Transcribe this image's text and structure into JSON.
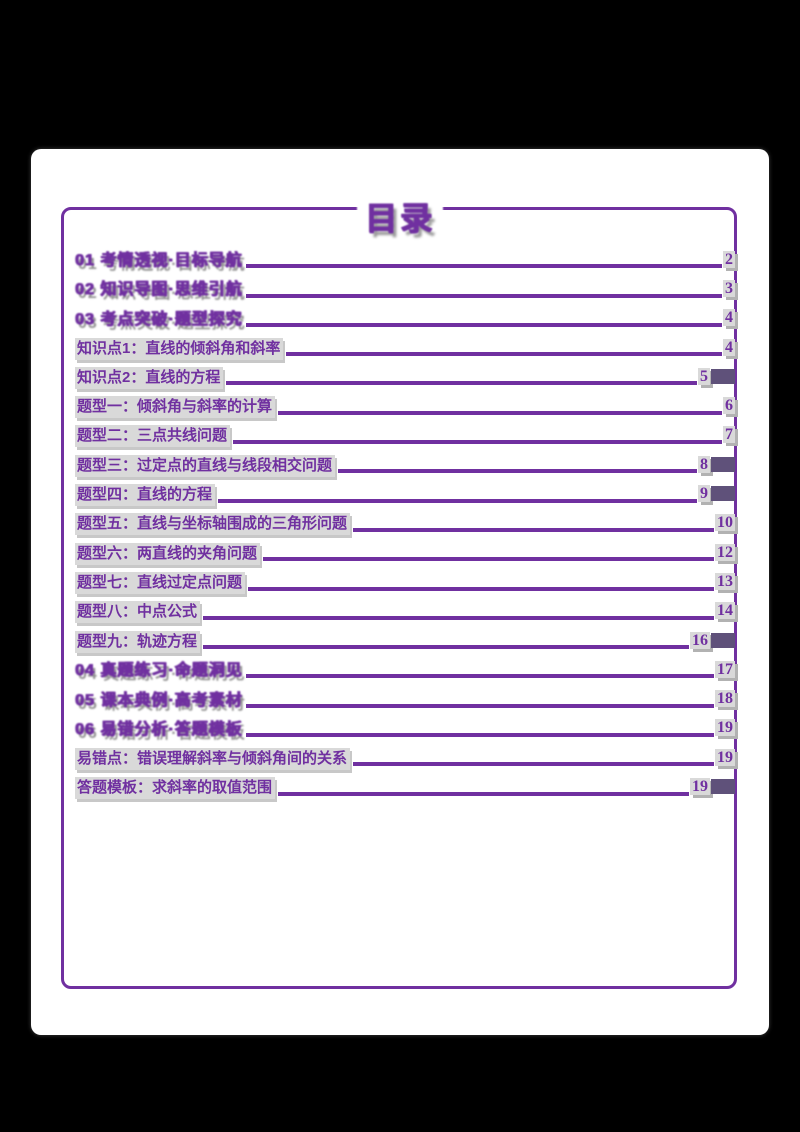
{
  "page": {
    "title": "目录",
    "accent_color": "#7030A0",
    "highlight_color": "#d9d9d9",
    "block_color": "#5f517a"
  },
  "toc": {
    "entries": [
      {
        "label": "01 考情透视·目标导航",
        "page": "2",
        "style": "header",
        "block": false
      },
      {
        "label": "02 知识导图·思维引航",
        "page": "3",
        "style": "header",
        "block": false
      },
      {
        "label": "03 考点突破·题型探究",
        "page": "4",
        "style": "header",
        "block": false
      },
      {
        "label": "知识点1：直线的倾斜角和斜率",
        "page": "4",
        "style": "normal",
        "block": false
      },
      {
        "label": "知识点2：直线的方程",
        "page": "5",
        "style": "normal",
        "block": true
      },
      {
        "label": "题型一：倾斜角与斜率的计算",
        "page": "6",
        "style": "normal",
        "block": false
      },
      {
        "label": "题型二：三点共线问题",
        "page": "7",
        "style": "normal",
        "block": false
      },
      {
        "label": "题型三：过定点的直线与线段相交问题",
        "page": "8",
        "style": "normal",
        "block": true
      },
      {
        "label": "题型四：直线的方程",
        "page": "9",
        "style": "normal",
        "block": true
      },
      {
        "label": "题型五：直线与坐标轴围成的三角形问题",
        "page": "10",
        "style": "normal",
        "block": false
      },
      {
        "label": "题型六：两直线的夹角问题",
        "page": "12",
        "style": "normal",
        "block": false
      },
      {
        "label": "题型七：直线过定点问题",
        "page": "13",
        "style": "normal",
        "block": false
      },
      {
        "label": "题型八：中点公式",
        "page": "14",
        "style": "normal",
        "block": false
      },
      {
        "label": "题型九：轨迹方程",
        "page": "16",
        "style": "normal",
        "block": true
      },
      {
        "label": "04 真题练习·命题洞见",
        "page": "17",
        "style": "header",
        "block": false
      },
      {
        "label": "05 课本典例·高考素材",
        "page": "18",
        "style": "header",
        "block": false
      },
      {
        "label": "06 易错分析·答题模板",
        "page": "19",
        "style": "header",
        "block": false
      },
      {
        "label": "易错点：错误理解斜率与倾斜角间的关系",
        "page": "19",
        "style": "normal",
        "block": false
      },
      {
        "label": "答题模板：求斜率的取值范围",
        "page": "19",
        "style": "normal",
        "block": true
      }
    ]
  }
}
